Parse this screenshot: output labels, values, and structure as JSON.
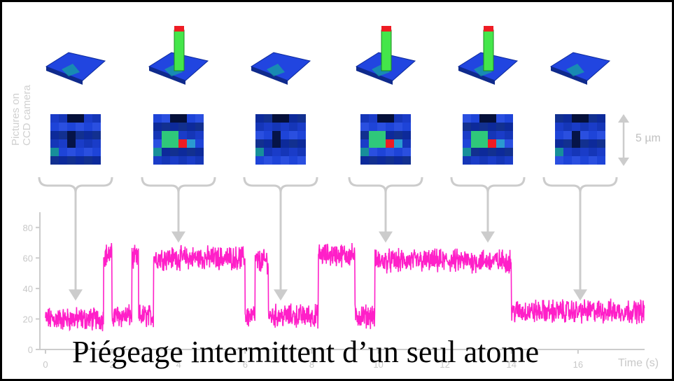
{
  "caption": "Piégeage intermittent d’un seul atome",
  "side_label_line1": "Pictures on",
  "side_label_line2": "CCD camera",
  "scale_label": "5 µm",
  "colors": {
    "trace": "#ff1fc8",
    "arrow": "#cccccc",
    "axis": "#cccccc"
  },
  "chart_data": {
    "type": "line",
    "xlabel": "Time (s)",
    "ylabel": "",
    "xlim": [
      0,
      18
    ],
    "ylim": [
      0,
      90
    ],
    "x_ticks": [
      0,
      2,
      4,
      6,
      8,
      10,
      12,
      14,
      16
    ],
    "y_ticks": [
      0,
      20,
      40,
      60,
      80
    ],
    "grid": false,
    "noise_amplitude": 6,
    "segments": [
      {
        "x0": 0.0,
        "x1": 1.75,
        "level": 20
      },
      {
        "x0": 1.75,
        "x1": 2.0,
        "level": 62
      },
      {
        "x0": 2.0,
        "x1": 2.6,
        "level": 22
      },
      {
        "x0": 2.6,
        "x1": 2.8,
        "level": 60
      },
      {
        "x0": 2.8,
        "x1": 3.25,
        "level": 22
      },
      {
        "x0": 3.25,
        "x1": 6.0,
        "level": 60
      },
      {
        "x0": 6.0,
        "x1": 6.3,
        "level": 22
      },
      {
        "x0": 6.3,
        "x1": 6.7,
        "level": 58
      },
      {
        "x0": 6.7,
        "x1": 8.2,
        "level": 22
      },
      {
        "x0": 8.2,
        "x1": 9.3,
        "level": 62
      },
      {
        "x0": 9.3,
        "x1": 9.9,
        "level": 22
      },
      {
        "x0": 9.9,
        "x1": 14.0,
        "level": 58
      },
      {
        "x0": 14.0,
        "x1": 18.0,
        "level": 25
      }
    ],
    "ccd_frames": [
      {
        "time": 1.0,
        "atom": false
      },
      {
        "time": 4.0,
        "atom": true
      },
      {
        "time": 7.3,
        "atom": false
      },
      {
        "time": 10.6,
        "atom": true
      },
      {
        "time": 13.8,
        "atom": true
      },
      {
        "time": 16.8,
        "atom": false
      }
    ]
  }
}
